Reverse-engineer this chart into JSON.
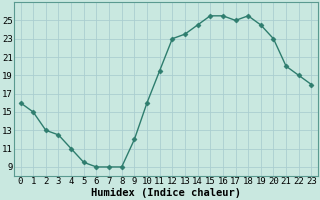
{
  "x": [
    0,
    1,
    2,
    3,
    4,
    5,
    6,
    7,
    8,
    9,
    10,
    11,
    12,
    13,
    14,
    15,
    16,
    17,
    18,
    19,
    20,
    21,
    22,
    23
  ],
  "y": [
    16,
    15,
    13,
    12.5,
    11,
    9.5,
    9,
    9,
    9,
    12,
    16,
    19.5,
    23,
    23.5,
    24.5,
    25.5,
    25.5,
    25,
    25.5,
    24.5,
    23,
    20,
    19,
    18
  ],
  "line_color": "#2e7d6e",
  "marker": "D",
  "marker_size": 2.5,
  "background_color": "#c9e8e0",
  "grid_color": "#aaced0",
  "xlabel": "Humidex (Indice chaleur)",
  "ylim": [
    8,
    27
  ],
  "xlim": [
    -0.5,
    23.5
  ],
  "yticks": [
    9,
    11,
    13,
    15,
    17,
    19,
    21,
    23,
    25
  ],
  "xticks": [
    0,
    1,
    2,
    3,
    4,
    5,
    6,
    7,
    8,
    9,
    10,
    11,
    12,
    13,
    14,
    15,
    16,
    17,
    18,
    19,
    20,
    21,
    22,
    23
  ],
  "xtick_labels": [
    "0",
    "1",
    "2",
    "3",
    "4",
    "5",
    "6",
    "7",
    "8",
    "9",
    "10",
    "11",
    "12",
    "13",
    "14",
    "15",
    "16",
    "17",
    "18",
    "19",
    "20",
    "21",
    "22",
    "23"
  ],
  "xlabel_fontsize": 7.5,
  "tick_fontsize": 6.5,
  "linewidth": 1.0
}
